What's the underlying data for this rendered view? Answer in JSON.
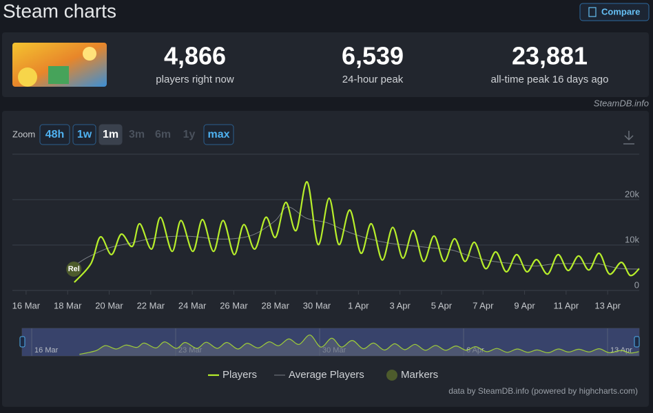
{
  "header": {
    "title": "Steam charts",
    "compare": "Compare"
  },
  "stats": [
    {
      "value": "4,866",
      "label": "players right now"
    },
    {
      "value": "6,539",
      "label": "24-hour peak"
    },
    {
      "value": "23,881",
      "label": "all-time peak 16 days ago"
    }
  ],
  "source": "SteamDB.info",
  "zoom": {
    "label": "Zoom",
    "options": [
      "48h",
      "1w",
      "1m",
      "3m",
      "6m",
      "1y",
      "max"
    ],
    "active": "1m",
    "disabled": [
      "3m",
      "6m",
      "1y"
    ]
  },
  "chart_data": {
    "type": "line",
    "xlim": [
      -0.66,
      29.52
    ],
    "xticks": [
      {
        "value": 0,
        "label": "16 Mar"
      },
      {
        "value": 2,
        "label": "18 Mar"
      },
      {
        "value": 4,
        "label": "20 Mar"
      },
      {
        "value": 6,
        "label": "22 Mar"
      },
      {
        "value": 8,
        "label": "24 Mar"
      },
      {
        "value": 10,
        "label": "26 Mar"
      },
      {
        "value": 12,
        "label": "28 Mar"
      },
      {
        "value": 14,
        "label": "30 Mar"
      },
      {
        "value": 16,
        "label": "1 Apr"
      },
      {
        "value": 18,
        "label": "3 Apr"
      },
      {
        "value": 20,
        "label": "5 Apr"
      },
      {
        "value": 22,
        "label": "7 Apr"
      },
      {
        "value": 24,
        "label": "9 Apr"
      },
      {
        "value": 26,
        "label": "11 Apr"
      },
      {
        "value": 28,
        "label": "13 Apr"
      }
    ],
    "ylim": [
      0,
      30000
    ],
    "yticks": [
      0,
      {
        "value": 10000,
        "label": "10k"
      },
      {
        "value": 20000,
        "label": "20k"
      }
    ],
    "grid": true,
    "series": [
      {
        "name": "Players",
        "color": "#b7ee2b",
        "x": [
          2.32,
          3.12,
          3.58,
          4.11,
          4.58,
          5.11,
          5.47,
          6.04,
          6.47,
          7.03,
          7.46,
          8.03,
          8.49,
          9.02,
          9.49,
          10.02,
          10.48,
          11.01,
          11.54,
          12.01,
          12.5,
          13.0,
          13.53,
          14.06,
          14.59,
          15.06,
          15.59,
          16.12,
          16.62,
          17.15,
          17.65,
          18.14,
          18.64,
          19.14,
          19.64,
          20.13,
          20.63,
          21.13,
          21.59,
          22.12,
          22.62,
          23.12,
          23.62,
          24.11,
          24.58,
          25.11,
          25.61,
          26.1,
          26.6,
          27.1,
          27.59,
          28.09,
          28.66,
          29.09,
          29.52
        ],
        "values": [
          1800,
          5900,
          11800,
          7900,
          12400,
          9700,
          14700,
          9100,
          16100,
          8600,
          15400,
          8600,
          15600,
          8600,
          15400,
          7900,
          14500,
          9100,
          16100,
          11700,
          19400,
          13200,
          23900,
          10100,
          20300,
          10100,
          17700,
          8200,
          14700,
          6700,
          13900,
          7100,
          13200,
          6400,
          12000,
          6400,
          11400,
          6400,
          10600,
          4800,
          8500,
          4100,
          7900,
          4100,
          6800,
          3600,
          7900,
          4400,
          7600,
          4500,
          8200,
          3600,
          6200,
          3300,
          4800
        ]
      },
      {
        "name": "Average Players",
        "color": "#7a7f86",
        "x": [
          2.5,
          3,
          4,
          5,
          6,
          7,
          8,
          9,
          10,
          11,
          12,
          12.6,
          13.5,
          14.5,
          15.5,
          16.5,
          17.5,
          18.5,
          19.5,
          20.5,
          21.5,
          22.5,
          23.5,
          24.5,
          25.5,
          26.5,
          27.5,
          28.5,
          29.5
        ],
        "values": [
          6000,
          7400,
          9400,
          10400,
          11400,
          11900,
          11900,
          11400,
          11400,
          12400,
          15400,
          18400,
          15900,
          14900,
          12900,
          11400,
          10400,
          9900,
          9400,
          8900,
          7400,
          6400,
          5900,
          5400,
          5900,
          5900,
          5900,
          4900,
          4700
        ]
      }
    ],
    "markers": {
      "name": "Markers",
      "color": "#4d5b2c",
      "points": [
        {
          "label": "Rel",
          "x": 2.3,
          "value": 4700
        }
      ]
    },
    "navigator": {
      "xlim": [
        -0.47,
        29.54
      ],
      "xticks": [
        {
          "value": 0,
          "label": "16 Mar"
        },
        {
          "value": 7,
          "label": "23 Mar"
        },
        {
          "value": 14,
          "label": "30 Mar"
        },
        {
          "value": 21,
          "label": "6 Apr"
        },
        {
          "value": 28,
          "label": "13 Apr"
        }
      ]
    },
    "credits": "data by SteamDB.info (powered by highcharts.com)"
  }
}
